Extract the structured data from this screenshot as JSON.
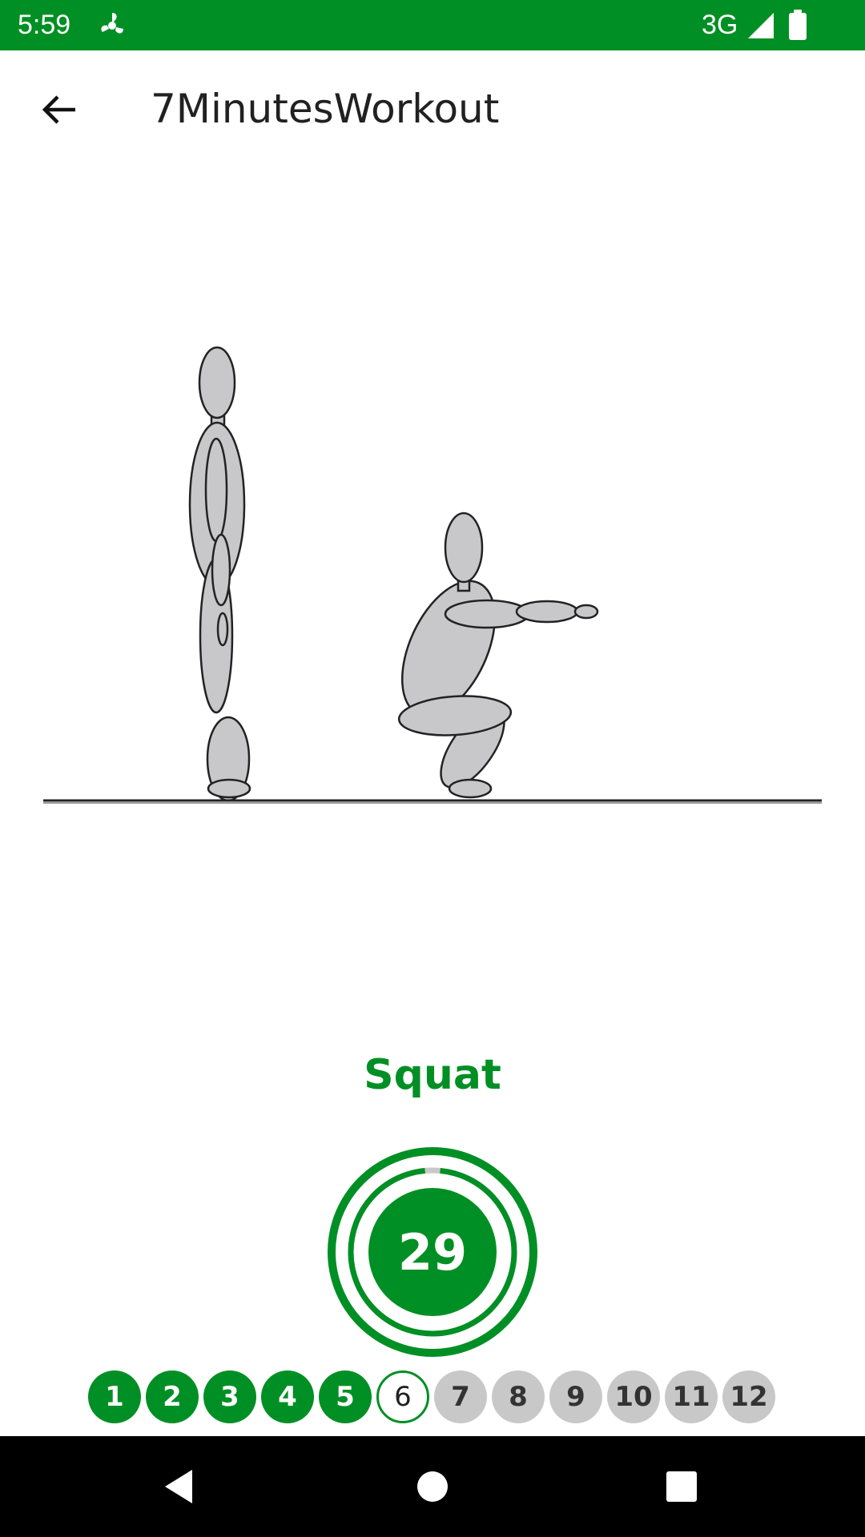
{
  "status_bar": {
    "time": "5:59",
    "network": "3G",
    "icons": [
      "fan-icon",
      "signal-icon",
      "battery-icon"
    ],
    "background": "#008F24"
  },
  "app_bar": {
    "title": "7MinutesWorkout",
    "back_icon": "arrow-back-icon"
  },
  "exercise": {
    "name": "Squat",
    "timer_value": "29",
    "timer_progress": 0.97
  },
  "progress": {
    "steps": [
      {
        "label": "1",
        "state": "done"
      },
      {
        "label": "2",
        "state": "done"
      },
      {
        "label": "3",
        "state": "done"
      },
      {
        "label": "4",
        "state": "done"
      },
      {
        "label": "5",
        "state": "done"
      },
      {
        "label": "6",
        "state": "current"
      },
      {
        "label": "7",
        "state": "todo"
      },
      {
        "label": "8",
        "state": "todo"
      },
      {
        "label": "9",
        "state": "todo"
      },
      {
        "label": "10",
        "state": "todo"
      },
      {
        "label": "11",
        "state": "todo"
      },
      {
        "label": "12",
        "state": "todo"
      }
    ]
  },
  "nav_bar": {
    "buttons": [
      "back-triangle-icon",
      "home-circle-icon",
      "recents-square-icon"
    ]
  },
  "colors": {
    "accent": "#008F24",
    "figure": "#C8C8CA",
    "inactive_step": "#C8C8C8"
  }
}
